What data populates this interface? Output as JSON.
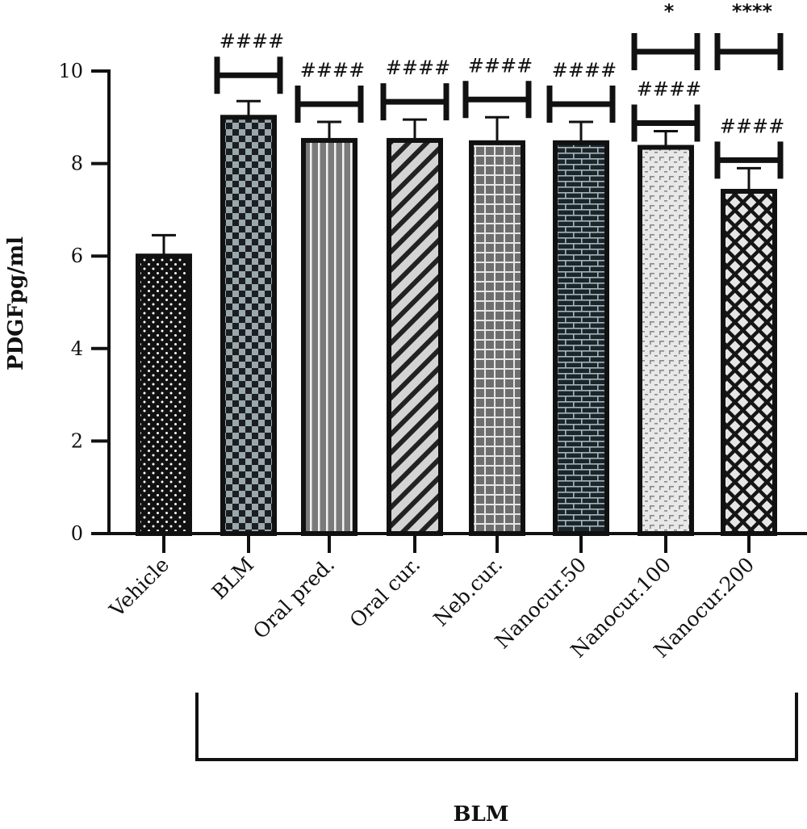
{
  "chart_data": {
    "type": "bar",
    "title": "",
    "ylabel": "PDGFpg/ml",
    "xlabel": "",
    "ylim": [
      0,
      10
    ],
    "yticks": [
      0,
      2,
      4,
      6,
      8,
      10
    ],
    "grid": false,
    "categories": [
      "Vehicle",
      "BLM",
      "Oral pred.",
      "Oral cur.",
      "Neb.cur.",
      "Nanocur.50",
      "Nanocur.100",
      "Nanocur.200"
    ],
    "values": [
      6.0,
      9.0,
      8.5,
      8.5,
      8.45,
      8.45,
      8.35,
      7.4
    ],
    "errors": [
      0.45,
      0.35,
      0.4,
      0.45,
      0.55,
      0.45,
      0.35,
      0.5
    ],
    "bar_patterns": [
      "dots",
      "checker",
      "vstripes",
      "diagonal",
      "grid",
      "brick",
      "dashes",
      "diamond"
    ],
    "significance_lower": [
      "",
      "####",
      "####",
      "####",
      "####",
      "####",
      "####",
      "####"
    ],
    "significance_upper": [
      "",
      "",
      "",
      "",
      "",
      "",
      "*",
      "****"
    ],
    "group_bracket_label": "BLM",
    "colors": {
      "ink": "#111111",
      "checker_light": "#9aa7ad",
      "stripe_gray": "#7a7a7a",
      "diagonal_light": "#d4d4d4",
      "grid_fill": "#6e6e6e",
      "brick_fill": "#1b262b",
      "brick_mortar": "#a7b6bd",
      "dash_fill": "#e8e8e8",
      "diamond_fill": "#e6e6e6"
    }
  }
}
